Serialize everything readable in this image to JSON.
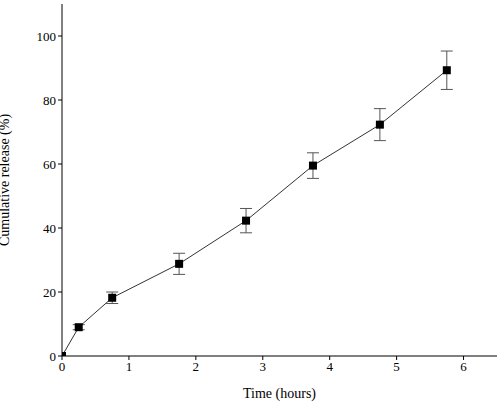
{
  "chart_data": {
    "type": "line",
    "x_label": "Time (hours)",
    "y_label": "Cumulative release (%)",
    "x": [
      0,
      0.25,
      0.75,
      1.75,
      2.75,
      3.75,
      4.75,
      5.75
    ],
    "values": [
      0,
      9,
      18.2,
      28.8,
      42.3,
      59.5,
      72.3,
      89.3
    ],
    "errors": [
      null,
      0.8,
      1.8,
      3.3,
      3.8,
      4.0,
      5.0,
      6.0
    ],
    "xlim": [
      0,
      6.5
    ],
    "xticks": [
      0,
      1,
      2,
      3,
      4,
      5,
      6
    ],
    "ylim": [
      0,
      110
    ],
    "yticks": [
      0,
      20,
      40,
      60,
      80,
      100
    ],
    "color": "#333333",
    "marker": "square",
    "grid": false
  }
}
